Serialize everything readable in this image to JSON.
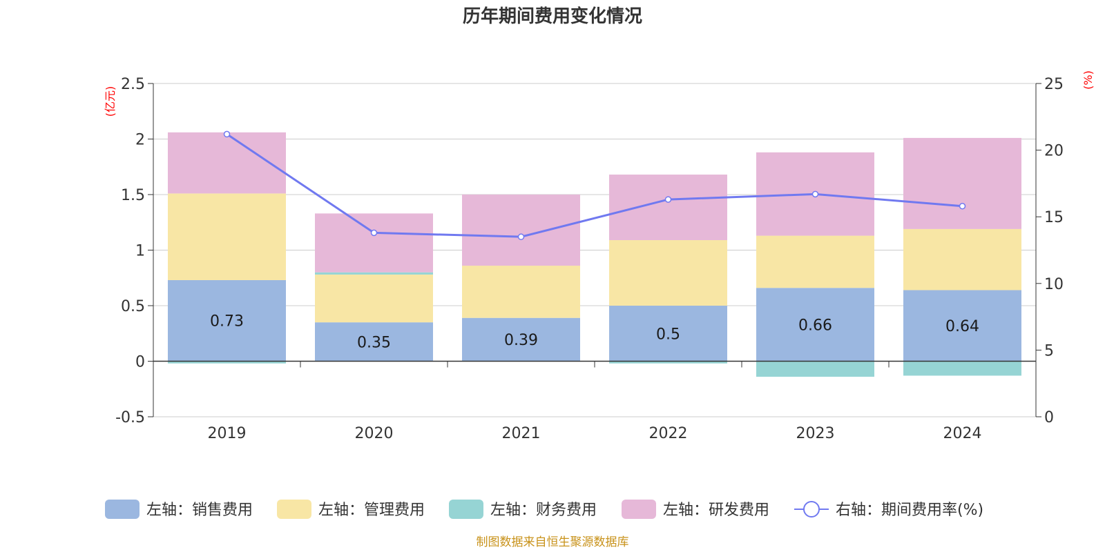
{
  "title": "历年期间费用变化情况",
  "source": "制图数据来自恒生聚源数据库",
  "chart_data": {
    "type": "bar",
    "stacked": true,
    "categories": [
      "2019",
      "2020",
      "2021",
      "2022",
      "2023",
      "2024"
    ],
    "series": [
      {
        "name": "左轴：销售费用",
        "axis": "left",
        "color": "#9bb7e0",
        "values": [
          0.73,
          0.35,
          0.39,
          0.5,
          0.66,
          0.64
        ],
        "labels": [
          "0.73",
          "0.35",
          "0.39",
          "0.5",
          "0.66",
          "0.64"
        ]
      },
      {
        "name": "左轴：管理费用",
        "axis": "left",
        "color": "#f8e6a5",
        "values": [
          0.78,
          0.43,
          0.47,
          0.59,
          0.47,
          0.55
        ]
      },
      {
        "name": "左轴：财务费用",
        "axis": "left",
        "color": "#96d4d4",
        "values": [
          -0.02,
          0.02,
          0.0,
          -0.02,
          -0.14,
          -0.13
        ]
      },
      {
        "name": "左轴：研发费用",
        "axis": "left",
        "color": "#e6b8d8",
        "values": [
          0.55,
          0.53,
          0.64,
          0.59,
          0.75,
          0.82
        ]
      },
      {
        "name": "右轴：期间费用率(%)",
        "axis": "right",
        "type": "line",
        "color": "#7079f0",
        "values": [
          21.2,
          13.8,
          13.5,
          16.3,
          16.7,
          15.8
        ]
      }
    ],
    "yleft": {
      "unit": "(亿元)",
      "ylim": [
        -0.5,
        2.5
      ],
      "ticks": [
        "-0.5",
        "0",
        "0.5",
        "1",
        "1.5",
        "2",
        "2.5"
      ]
    },
    "yright": {
      "unit": "(%)",
      "ylim": [
        0,
        25
      ],
      "ticks": [
        "0",
        "5",
        "10",
        "15",
        "20",
        "25"
      ]
    },
    "grid": true,
    "legend": "bottom"
  }
}
